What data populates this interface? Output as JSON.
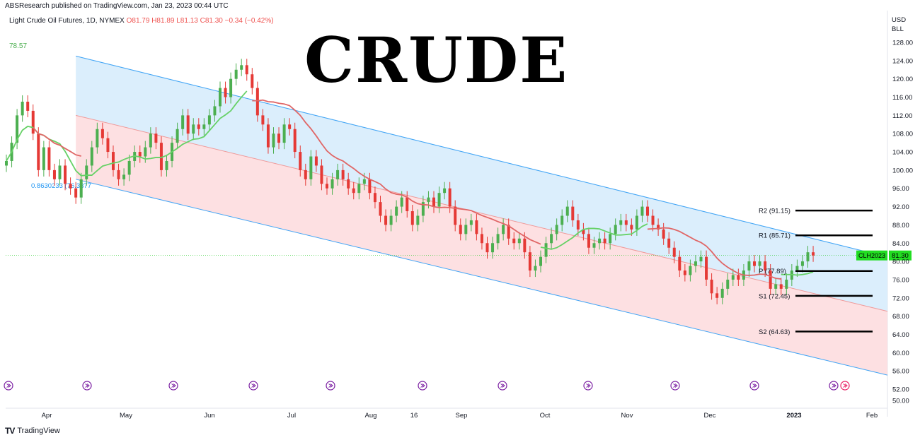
{
  "publisher": "ABSResearch published on TradingView.com, Jan 23, 2023 00:44 UTC",
  "legend": {
    "symbol": "Light Crude Oil Futures, 1D, NYMEX",
    "ohlc": "O81.79  H81.89  L81.13  C81.30  −0.34 (−0.42%)"
  },
  "indicator_value": "78.57",
  "big_title": "CRUDE",
  "axis_units": [
    "USD",
    "BLL"
  ],
  "price_tag": {
    "symbol": "CLH2023",
    "value": "81.30"
  },
  "fib_label": "0.8630233 (76.3377",
  "footer": {
    "brand": "TradingView"
  },
  "colors": {
    "up": "#4caf50",
    "down": "#e53935",
    "channel_upper_fill": "#dbeefc",
    "channel_lower_fill": "#fde0e2",
    "channel_line": "#42a5f5",
    "ma_fast": "#66d166",
    "ma_slow": "#e06666",
    "pivot": "#000000",
    "price_tag": "#22dd22"
  },
  "chart_data": {
    "type": "candlestick",
    "title": "CRUDE",
    "ylabel": "USD BLL",
    "ylim": [
      48,
      132
    ],
    "y_ticks": [
      50,
      52,
      56,
      60,
      64,
      68,
      72,
      76,
      80,
      84,
      88,
      92,
      96,
      100,
      104,
      108,
      112,
      116,
      120,
      124,
      128
    ],
    "x_labels": [
      "Apr",
      "May",
      "Jun",
      "Jul",
      "Aug",
      "16",
      "Sep",
      "Oct",
      "Nov",
      "Dec",
      "2023",
      "Feb"
    ],
    "close_series": [
      [
        0,
        102
      ],
      [
        1,
        106
      ],
      [
        2,
        112
      ],
      [
        3,
        115
      ],
      [
        4,
        113
      ],
      [
        5,
        108
      ],
      [
        6,
        100
      ],
      [
        7,
        105
      ],
      [
        8,
        100
      ],
      [
        9,
        98
      ],
      [
        10,
        101
      ],
      [
        11,
        97
      ],
      [
        12,
        96
      ],
      [
        13,
        94
      ],
      [
        14,
        98
      ],
      [
        15,
        101
      ],
      [
        16,
        105
      ],
      [
        17,
        109
      ],
      [
        18,
        107
      ],
      [
        19,
        104
      ],
      [
        20,
        100
      ],
      [
        21,
        98
      ],
      [
        22,
        99
      ],
      [
        23,
        102
      ],
      [
        24,
        104
      ],
      [
        25,
        103
      ],
      [
        26,
        105
      ],
      [
        27,
        108
      ],
      [
        28,
        106
      ],
      [
        29,
        100
      ],
      [
        30,
        102
      ],
      [
        31,
        106
      ],
      [
        32,
        109
      ],
      [
        33,
        112
      ],
      [
        34,
        108
      ],
      [
        35,
        110
      ],
      [
        36,
        109
      ],
      [
        37,
        110
      ],
      [
        38,
        112
      ],
      [
        39,
        114
      ],
      [
        40,
        118
      ],
      [
        41,
        116
      ],
      [
        42,
        120
      ],
      [
        43,
        122
      ],
      [
        44,
        123
      ],
      [
        45,
        121
      ],
      [
        46,
        118
      ],
      [
        47,
        112
      ],
      [
        48,
        110
      ],
      [
        49,
        105
      ],
      [
        50,
        108
      ],
      [
        51,
        106
      ],
      [
        52,
        110
      ],
      [
        53,
        109
      ],
      [
        54,
        104
      ],
      [
        55,
        100
      ],
      [
        56,
        98
      ],
      [
        57,
        103
      ],
      [
        58,
        101
      ],
      [
        59,
        97
      ],
      [
        60,
        96
      ],
      [
        61,
        98
      ],
      [
        62,
        100
      ],
      [
        63,
        98
      ],
      [
        64,
        96
      ],
      [
        65,
        95
      ],
      [
        66,
        97
      ],
      [
        67,
        98
      ],
      [
        68,
        95
      ],
      [
        69,
        93
      ],
      [
        70,
        90
      ],
      [
        71,
        88
      ],
      [
        72,
        90
      ],
      [
        73,
        92
      ],
      [
        74,
        94
      ],
      [
        75,
        91
      ],
      [
        76,
        88
      ],
      [
        77,
        90
      ],
      [
        78,
        93
      ],
      [
        79,
        94
      ],
      [
        80,
        92
      ],
      [
        81,
        95
      ],
      [
        82,
        96
      ],
      [
        83,
        92
      ],
      [
        84,
        88
      ],
      [
        85,
        86
      ],
      [
        86,
        88
      ],
      [
        87,
        89
      ],
      [
        88,
        86
      ],
      [
        89,
        84
      ],
      [
        90,
        82
      ],
      [
        91,
        84
      ],
      [
        92,
        86
      ],
      [
        93,
        88
      ],
      [
        94,
        85
      ],
      [
        95,
        84
      ],
      [
        96,
        85
      ],
      [
        97,
        82
      ],
      [
        98,
        78
      ],
      [
        99,
        79
      ],
      [
        100,
        81
      ],
      [
        101,
        84
      ],
      [
        102,
        86
      ],
      [
        103,
        88
      ],
      [
        104,
        90
      ],
      [
        105,
        92
      ],
      [
        106,
        89
      ],
      [
        107,
        87
      ],
      [
        108,
        86
      ],
      [
        109,
        83
      ],
      [
        110,
        84
      ],
      [
        111,
        85
      ],
      [
        112,
        84
      ],
      [
        113,
        86
      ],
      [
        114,
        88
      ],
      [
        115,
        89
      ],
      [
        116,
        88
      ],
      [
        117,
        87
      ],
      [
        118,
        90
      ],
      [
        119,
        92
      ],
      [
        120,
        90
      ],
      [
        121,
        88
      ],
      [
        122,
        87
      ],
      [
        123,
        85
      ],
      [
        124,
        83
      ],
      [
        125,
        81
      ],
      [
        126,
        78
      ],
      [
        127,
        77
      ],
      [
        128,
        79
      ],
      [
        129,
        80
      ],
      [
        130,
        81
      ],
      [
        131,
        76
      ],
      [
        132,
        73
      ],
      [
        133,
        72
      ],
      [
        134,
        74
      ],
      [
        135,
        76
      ],
      [
        136,
        77
      ],
      [
        137,
        76
      ],
      [
        138,
        78
      ],
      [
        139,
        80
      ],
      [
        140,
        79
      ],
      [
        141,
        80
      ],
      [
        142,
        78
      ],
      [
        143,
        74
      ],
      [
        144,
        75
      ],
      [
        145,
        74
      ],
      [
        146,
        76
      ],
      [
        147,
        78
      ],
      [
        148,
        79
      ],
      [
        149,
        80
      ],
      [
        150,
        82
      ],
      [
        151,
        81.3
      ]
    ],
    "channel": {
      "upper_start": [
        13,
        125
      ],
      "upper_end": [
        151,
        85
      ],
      "middle_start": [
        13,
        112
      ],
      "middle_end": [
        151,
        73
      ],
      "lower_start": [
        13,
        98
      ],
      "lower_end": [
        151,
        59
      ]
    },
    "pivots": [
      {
        "label": "R2 (91.15)",
        "value": 91.15
      },
      {
        "label": "R1 (85.71)",
        "value": 85.71
      },
      {
        "label": "P (77.89)",
        "value": 77.89
      },
      {
        "label": "S1 (72.45)",
        "value": 72.45
      },
      {
        "label": "S2 (64.63)",
        "value": 64.63
      }
    ]
  }
}
